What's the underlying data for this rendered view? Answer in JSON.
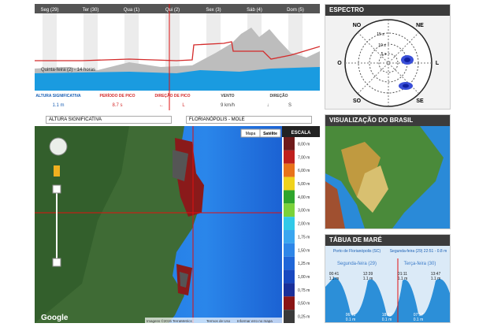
{
  "forecast": {
    "days": [
      "Seg (29)",
      "Ter (30)",
      "Qua (1)",
      "Qui (2)",
      "Sex (3)",
      "Sáb (4)",
      "Dom (5)"
    ],
    "caption": "Quinta-feira (2) - 14 horas",
    "metrics": [
      {
        "label": "ALTURA SIGNIFICATIVA",
        "values": [
          "1.1 m"
        ]
      },
      {
        "label": "PERÍODO DE PICO",
        "values": [
          "8.7 s"
        ]
      },
      {
        "label": "DIREÇÃO DE PICO",
        "values": [
          "←",
          "L"
        ]
      },
      {
        "label": "VENTO",
        "values": [
          "9 km/h"
        ]
      },
      {
        "label": "DIREÇÃO",
        "values": [
          "↓",
          "S"
        ]
      }
    ]
  },
  "spectrum": {
    "title": "ESPECTRO",
    "directions": [
      "NO",
      "NE",
      "O",
      "L",
      "SO",
      "SE"
    ],
    "rings": [
      "15 s",
      "10 s",
      "5 s"
    ]
  },
  "map": {
    "selects": [
      "ALTURA SIGNIFICATIVA",
      "FLORIANÓPOLIS - MOLE"
    ],
    "buttons": [
      "Mapa",
      "Satélite"
    ],
    "scale_title": "ESCALA",
    "scale": [
      {
        "label": "8,00 m",
        "color": "#6e1a1a"
      },
      {
        "label": "7,00 m",
        "color": "#c0201e"
      },
      {
        "label": "6,00 m",
        "color": "#e8731a"
      },
      {
        "label": "5,00 m",
        "color": "#f0d21c"
      },
      {
        "label": "4,00 m",
        "color": "#2fa52d"
      },
      {
        "label": "3,00 m",
        "color": "#7bd23a"
      },
      {
        "label": "2,00 m",
        "color": "#31c9e8"
      },
      {
        "label": "1,75 m",
        "color": "#3aa6f0"
      },
      {
        "label": "1,50 m",
        "color": "#2e86e8"
      },
      {
        "label": "1,25 m",
        "color": "#1f66d8"
      },
      {
        "label": "1,00 m",
        "color": "#1848c0"
      },
      {
        "label": "0,75 m",
        "color": "#1a2f9a"
      },
      {
        "label": "0,50 m",
        "color": "#8a1414"
      },
      {
        "label": "0,25 m",
        "color": "#3a3a3a"
      }
    ],
    "logo": "Google",
    "footer": [
      "Imagens ©2015 TerraMetrics",
      "Termos de Uso",
      "Informar erro no mapa"
    ]
  },
  "brasil": {
    "title": "VISUALIZAÇÃO DO BRASIL"
  },
  "tide": {
    "title": "TÁBUA DE MARÉ",
    "port": "Porto de Florianópolis (SC)",
    "current": "Segunda-feira (29) 22:51 - 0.8 m",
    "days": [
      "Segunda-feira (29)",
      "Terça-feira (30)"
    ],
    "events": [
      {
        "time": "00:41",
        "height": "1.1 m"
      },
      {
        "time": "06:41",
        "height": "0.1 m"
      },
      {
        "time": "12:39",
        "height": "1.1 m"
      },
      {
        "time": "18:37",
        "height": "0.1 m"
      },
      {
        "time": "01:11",
        "height": "1.1 m"
      },
      {
        "time": "07:17",
        "height": "0.1 m"
      },
      {
        "time": "13:47",
        "height": "1.1 m"
      }
    ]
  }
}
